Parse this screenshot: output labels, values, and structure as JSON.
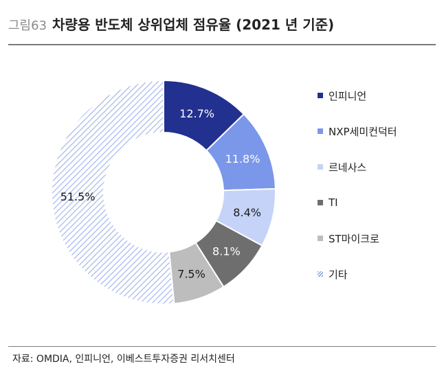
{
  "figure": {
    "number": "그림63",
    "title": "차량용 반도체 상위업체 점유율 (2021 년 기준)"
  },
  "source": "자료: OMDIA, 인피니언, 이베스트투자증권 리서치센터",
  "chart_data": {
    "type": "donut",
    "title": "차량용 반도체 상위업체 점유율 (2021 년 기준)",
    "legend_position": "right",
    "series": [
      {
        "name": "인피니언",
        "value": 12.7,
        "label": "12.7%",
        "color": "#22308f",
        "label_color": "#ffffff"
      },
      {
        "name": "NXP세미컨덕터",
        "value": 11.8,
        "label": "11.8%",
        "color": "#7b97ea",
        "label_color": "#ffffff"
      },
      {
        "name": "르네사스",
        "value": 8.4,
        "label": "8.4%",
        "color": "#c6d3f8",
        "label_color": "#1a1a1a"
      },
      {
        "name": "TI",
        "value": 8.1,
        "label": "8.1%",
        "color": "#6e6e6e",
        "label_color": "#ffffff"
      },
      {
        "name": "ST마이크로",
        "value": 7.5,
        "label": "7.5%",
        "color": "#bdbdbd",
        "label_color": "#1a1a1a"
      },
      {
        "name": "기타",
        "value": 51.5,
        "label": "51.5%",
        "color": "hatch",
        "label_color": "#1a1a1a"
      }
    ]
  }
}
